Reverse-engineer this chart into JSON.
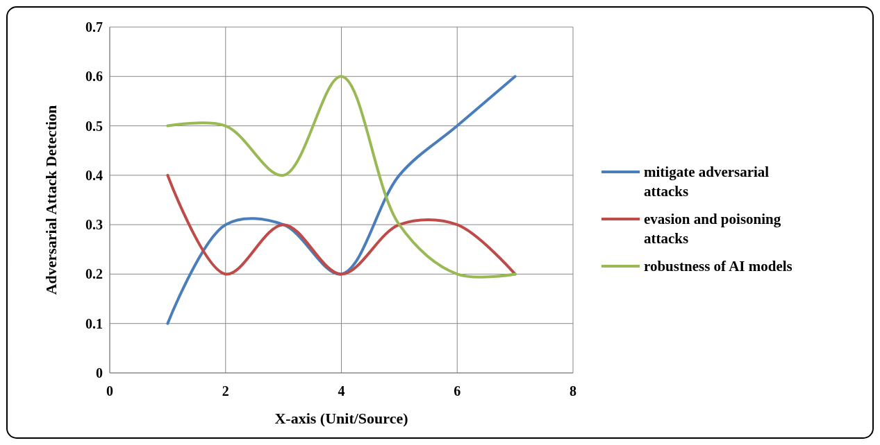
{
  "chart_data": {
    "type": "line",
    "xlabel": "X-axis (Unit/Source)",
    "ylabel": "Adversarial Attack Detection",
    "x": [
      1,
      2,
      3,
      4,
      5,
      6,
      7
    ],
    "series": [
      {
        "name": "mitigate adversarial attacks",
        "color": "#4a7ebb",
        "values": [
          0.1,
          0.3,
          0.3,
          0.2,
          0.4,
          0.5,
          0.6
        ]
      },
      {
        "name": "evasion and poisoning attacks",
        "color": "#be4b48",
        "values": [
          0.4,
          0.2,
          0.3,
          0.2,
          0.3,
          0.3,
          0.2
        ]
      },
      {
        "name": "robustness of AI models",
        "color": "#98b954",
        "values": [
          0.5,
          0.5,
          0.4,
          0.6,
          0.3,
          0.2,
          0.2
        ]
      }
    ],
    "xlim": [
      0,
      8
    ],
    "xticks": [
      0,
      2,
      4,
      6,
      8
    ],
    "ylim": [
      0,
      0.7
    ],
    "yticks": [
      0,
      0.1,
      0.2,
      0.3,
      0.4,
      0.5,
      0.6,
      0.7
    ],
    "grid": true,
    "legend": "right",
    "marker": "none",
    "line_style": "solid"
  }
}
